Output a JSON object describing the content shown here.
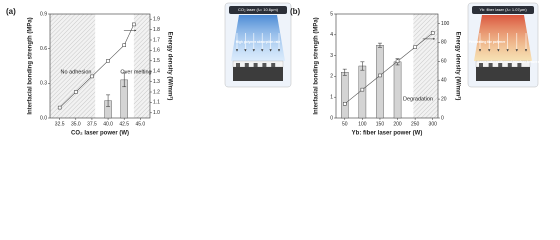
{
  "chart_data": [
    {
      "type": "bar-line",
      "panel": "(a)",
      "xlabel": "CO₂ laser power (W)",
      "ylabel": "Interfacial bonding strength (MPa)",
      "y2label": "Energy density (W/mm²)",
      "xlim": [
        31,
        46.5
      ],
      "xticks": [
        32.5,
        {
          "value": 35,
          "label": "35.0"
        },
        37.5,
        {
          "value": 40,
          "label": "40.0"
        },
        42.5,
        {
          "value": 45,
          "label": "45.0"
        }
      ],
      "ylim": [
        0,
        0.9
      ],
      "yticks": [
        {
          "value": 0,
          "label": "0.0"
        },
        0.3,
        0.6,
        0.9
      ],
      "y2lim": [
        0.95,
        1.95
      ],
      "y2ticks": [
        {
          "value": 1,
          "label": "1.0"
        },
        1.1,
        1.2,
        1.3,
        1.4,
        1.5,
        1.6,
        1.7,
        1.8,
        1.9
      ],
      "shaded_ranges": [
        [
          31,
          38
        ],
        [
          44,
          46.5
        ]
      ],
      "annotations": [
        "No adhesion",
        "Over melting"
      ],
      "series": [
        {
          "kind": "bar",
          "axis": "y",
          "color": "#d4d4d4",
          "x": [
            40,
            42.5
          ],
          "values": [
            0.15,
            0.33
          ],
          "errors": [
            0.05,
            0.06
          ]
        },
        {
          "kind": "line",
          "axis": "y2",
          "color": "#555555",
          "x": [
            32.5,
            35,
            37.5,
            40,
            42.5,
            44
          ],
          "values": [
            1.05,
            1.2,
            1.35,
            1.5,
            1.65,
            1.85
          ]
        }
      ],
      "inset_title": "CO₂ laser (λ= 10.6μm)",
      "inset_notes": [
        "High polymer absorption rate"
      ],
      "inset_color": "#3a7fd0"
    },
    {
      "type": "bar-line",
      "panel": "(b)",
      "xlabel": "Yb: fiber laser power (W)",
      "ylabel": "Interfacial bonding strength (MPa)",
      "y2label": "Energy density (W/mm²)",
      "xlim": [
        25,
        315
      ],
      "xticks": [
        50,
        100,
        150,
        200,
        250,
        300
      ],
      "ylim": [
        0,
        5
      ],
      "yticks": [
        0,
        1,
        2,
        3,
        4,
        5
      ],
      "y2lim": [
        0,
        110
      ],
      "y2ticks": [
        0,
        20,
        40,
        60,
        80,
        100
      ],
      "shaded_ranges": [
        [
          245,
          315
        ]
      ],
      "annotations": [
        "Degradation"
      ],
      "series": [
        {
          "kind": "bar",
          "axis": "y",
          "color": "#d4d4d4",
          "x": [
            50,
            100,
            150,
            200
          ],
          "values": [
            2.2,
            2.5,
            3.5,
            2.7
          ],
          "errors": [
            0.15,
            0.2,
            0.1,
            0.15
          ]
        },
        {
          "kind": "line",
          "axis": "y2",
          "color": "#555555",
          "x": [
            50,
            100,
            150,
            200,
            250,
            300
          ],
          "values": [
            15,
            30,
            45,
            60,
            75,
            90
          ]
        }
      ],
      "inset_title": "Yb: fiber laser (λ= 1.07μm)",
      "inset_notes": [
        "Penetrating the polymer",
        "Laser-induced thermal interface between metal-polymer"
      ],
      "inset_color": "#d8452a"
    }
  ]
}
